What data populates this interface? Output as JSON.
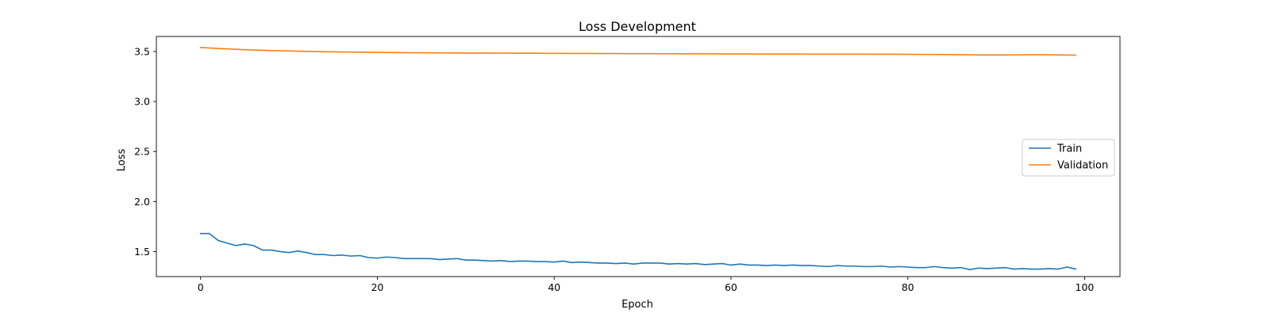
{
  "chart_data": {
    "type": "line",
    "title": "Loss Development",
    "xlabel": "Epoch",
    "ylabel": "Loss",
    "xlim": [
      -5,
      104
    ],
    "ylim": [
      1.25,
      3.65
    ],
    "xticks": [
      0,
      20,
      40,
      60,
      80,
      100
    ],
    "yticks": [
      1.5,
      2.0,
      2.5,
      3.0,
      3.5
    ],
    "grid": false,
    "legend_position": "center-right",
    "series": [
      {
        "name": "Train",
        "color": "#1f77b4",
        "x": [
          0,
          1,
          2,
          3,
          4,
          5,
          6,
          7,
          8,
          9,
          10,
          11,
          12,
          13,
          14,
          15,
          16,
          17,
          18,
          19,
          20,
          21,
          22,
          23,
          24,
          25,
          26,
          27,
          28,
          29,
          30,
          31,
          32,
          33,
          34,
          35,
          36,
          37,
          38,
          39,
          40,
          41,
          42,
          43,
          44,
          45,
          46,
          47,
          48,
          49,
          50,
          51,
          52,
          53,
          54,
          55,
          56,
          57,
          58,
          59,
          60,
          61,
          62,
          63,
          64,
          65,
          66,
          67,
          68,
          69,
          70,
          71,
          72,
          73,
          74,
          75,
          76,
          77,
          78,
          79,
          80,
          81,
          82,
          83,
          84,
          85,
          86,
          87,
          88,
          89,
          90,
          91,
          92,
          93,
          94,
          95,
          96,
          97,
          98,
          99
        ],
        "y": [
          1.68,
          1.68,
          1.61,
          1.585,
          1.56,
          1.575,
          1.56,
          1.515,
          1.515,
          1.5,
          1.49,
          1.505,
          1.49,
          1.47,
          1.47,
          1.46,
          1.465,
          1.455,
          1.46,
          1.44,
          1.435,
          1.445,
          1.44,
          1.43,
          1.43,
          1.43,
          1.43,
          1.42,
          1.425,
          1.43,
          1.415,
          1.415,
          1.41,
          1.405,
          1.41,
          1.4,
          1.405,
          1.405,
          1.4,
          1.4,
          1.395,
          1.405,
          1.39,
          1.395,
          1.39,
          1.385,
          1.385,
          1.38,
          1.385,
          1.375,
          1.385,
          1.385,
          1.385,
          1.375,
          1.38,
          1.375,
          1.38,
          1.37,
          1.375,
          1.38,
          1.365,
          1.375,
          1.365,
          1.365,
          1.36,
          1.365,
          1.36,
          1.365,
          1.36,
          1.36,
          1.355,
          1.35,
          1.36,
          1.355,
          1.355,
          1.35,
          1.35,
          1.355,
          1.345,
          1.35,
          1.345,
          1.34,
          1.34,
          1.35,
          1.34,
          1.335,
          1.34,
          1.32,
          1.335,
          1.33,
          1.335,
          1.34,
          1.325,
          1.33,
          1.325,
          1.325,
          1.33,
          1.325,
          1.345,
          1.325
        ]
      },
      {
        "name": "Validation",
        "color": "#ff7f0e",
        "x": [
          0,
          1,
          2,
          3,
          4,
          5,
          6,
          7,
          8,
          9,
          10,
          11,
          12,
          13,
          14,
          15,
          16,
          17,
          18,
          19,
          20,
          21,
          22,
          23,
          24,
          25,
          26,
          27,
          28,
          29,
          30,
          31,
          32,
          33,
          34,
          35,
          36,
          37,
          38,
          39,
          40,
          41,
          42,
          43,
          44,
          45,
          46,
          47,
          48,
          49,
          50,
          51,
          52,
          53,
          54,
          55,
          56,
          57,
          58,
          59,
          60,
          61,
          62,
          63,
          64,
          65,
          66,
          67,
          68,
          69,
          70,
          71,
          72,
          73,
          74,
          75,
          76,
          77,
          78,
          79,
          80,
          81,
          82,
          83,
          84,
          85,
          86,
          87,
          88,
          89,
          90,
          91,
          92,
          93,
          94,
          95,
          96,
          97,
          98,
          99
        ],
        "y": [
          3.54,
          3.535,
          3.53,
          3.526,
          3.522,
          3.518,
          3.515,
          3.512,
          3.509,
          3.507,
          3.505,
          3.503,
          3.501,
          3.499,
          3.497,
          3.496,
          3.495,
          3.494,
          3.493,
          3.492,
          3.491,
          3.49,
          3.489,
          3.488,
          3.487,
          3.487,
          3.486,
          3.486,
          3.485,
          3.485,
          3.484,
          3.484,
          3.484,
          3.483,
          3.483,
          3.483,
          3.482,
          3.482,
          3.482,
          3.481,
          3.481,
          3.481,
          3.48,
          3.48,
          3.48,
          3.479,
          3.479,
          3.479,
          3.478,
          3.478,
          3.478,
          3.478,
          3.477,
          3.477,
          3.477,
          3.476,
          3.476,
          3.476,
          3.476,
          3.475,
          3.475,
          3.475,
          3.475,
          3.474,
          3.474,
          3.474,
          3.474,
          3.474,
          3.474,
          3.473,
          3.473,
          3.473,
          3.473,
          3.473,
          3.473,
          3.473,
          3.472,
          3.472,
          3.472,
          3.472,
          3.471,
          3.471,
          3.47,
          3.47,
          3.469,
          3.468,
          3.467,
          3.466,
          3.465,
          3.465,
          3.465,
          3.465,
          3.465,
          3.466,
          3.467,
          3.467,
          3.466,
          3.465,
          3.464,
          3.463
        ]
      }
    ]
  }
}
